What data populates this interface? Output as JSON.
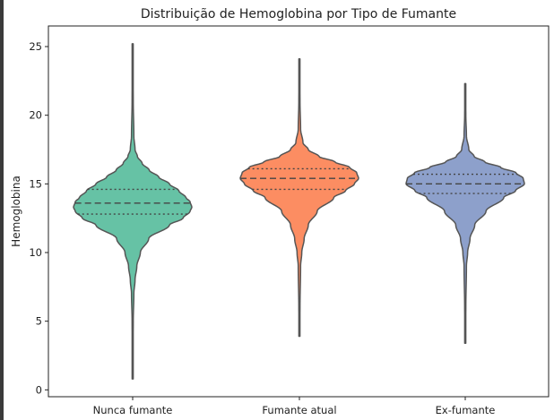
{
  "chart_data": {
    "type": "violin",
    "title": "Distribuição de Hemoglobina por Tipo de Fumante",
    "xlabel": "",
    "ylabel": "Hemoglobina",
    "ylim": [
      -0.5,
      26.5
    ],
    "yticks": [
      0,
      5,
      10,
      15,
      20,
      25
    ],
    "grid": false,
    "legend": "none",
    "categories": [
      "Nunca fumante",
      "Fumante atual",
      "Ex-fumante"
    ],
    "colors": [
      "#66c2a5",
      "#fc8d62",
      "#8da0cb"
    ],
    "series": [
      {
        "category": "Nunca fumante",
        "min": 0.8,
        "max": 25.2,
        "q1": 12.8,
        "median": 13.6,
        "q3": 14.6,
        "density_profile": [
          [
            0.8,
            0.0
          ],
          [
            5.0,
            0.01
          ],
          [
            7.0,
            0.02
          ],
          [
            8.0,
            0.04
          ],
          [
            9.0,
            0.07
          ],
          [
            10.0,
            0.13
          ],
          [
            11.0,
            0.27
          ],
          [
            12.0,
            0.62
          ],
          [
            12.5,
            0.85
          ],
          [
            13.0,
            0.97
          ],
          [
            13.3,
            1.0
          ],
          [
            13.7,
            0.97
          ],
          [
            14.0,
            0.9
          ],
          [
            14.5,
            0.78
          ],
          [
            15.0,
            0.62
          ],
          [
            15.5,
            0.44
          ],
          [
            16.0,
            0.28
          ],
          [
            16.5,
            0.16
          ],
          [
            17.0,
            0.08
          ],
          [
            17.5,
            0.04
          ],
          [
            18.5,
            0.02
          ],
          [
            21.0,
            0.01
          ],
          [
            25.2,
            0.0
          ]
        ]
      },
      {
        "category": "Fumante atual",
        "min": 3.9,
        "max": 24.1,
        "q1": 14.6,
        "median": 15.4,
        "q3": 16.1,
        "density_profile": [
          [
            3.9,
            0.0
          ],
          [
            6.0,
            0.01
          ],
          [
            9.0,
            0.02
          ],
          [
            10.0,
            0.04
          ],
          [
            11.0,
            0.08
          ],
          [
            12.0,
            0.15
          ],
          [
            13.0,
            0.3
          ],
          [
            14.0,
            0.58
          ],
          [
            14.5,
            0.78
          ],
          [
            15.0,
            0.93
          ],
          [
            15.4,
            1.0
          ],
          [
            15.8,
            0.97
          ],
          [
            16.2,
            0.85
          ],
          [
            16.6,
            0.6
          ],
          [
            17.0,
            0.33
          ],
          [
            17.5,
            0.15
          ],
          [
            18.0,
            0.06
          ],
          [
            19.0,
            0.02
          ],
          [
            21.0,
            0.01
          ],
          [
            24.1,
            0.0
          ]
        ]
      },
      {
        "category": "Ex-fumante",
        "min": 3.4,
        "max": 22.3,
        "q1": 14.3,
        "median": 15.0,
        "q3": 15.7,
        "density_profile": [
          [
            3.4,
            0.0
          ],
          [
            6.0,
            0.01
          ],
          [
            9.0,
            0.02
          ],
          [
            10.0,
            0.04
          ],
          [
            11.0,
            0.08
          ],
          [
            12.0,
            0.16
          ],
          [
            13.0,
            0.35
          ],
          [
            14.0,
            0.65
          ],
          [
            14.5,
            0.85
          ],
          [
            15.0,
            1.0
          ],
          [
            15.4,
            0.98
          ],
          [
            15.8,
            0.86
          ],
          [
            16.2,
            0.6
          ],
          [
            16.6,
            0.33
          ],
          [
            17.0,
            0.15
          ],
          [
            17.5,
            0.06
          ],
          [
            18.5,
            0.02
          ],
          [
            20.0,
            0.01
          ],
          [
            22.3,
            0.0
          ]
        ]
      }
    ]
  }
}
